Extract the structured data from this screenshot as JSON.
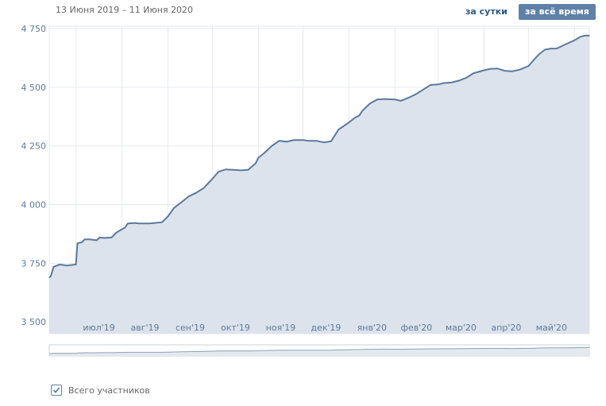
{
  "header": {
    "date_range": "13 Июня 2019 – 11 Июня 2020",
    "btn_day": "за сутки",
    "btn_all": "за всё время"
  },
  "legend": {
    "label": "Всего участников",
    "checked": true
  },
  "colors": {
    "line": "#5b7a9c",
    "fill": "#dde3ec",
    "grid": "#e7eaee",
    "accent": "#5e81a8"
  },
  "chart_data": {
    "type": "area",
    "title": "",
    "xlabel": "",
    "ylabel": "",
    "ylim": [
      3450,
      4760
    ],
    "y_ticks": [
      "4 750",
      "4 500",
      "4 250",
      "4 000",
      "3 750",
      "3 500"
    ],
    "y_tick_values": [
      4750,
      4500,
      4250,
      4000,
      3750,
      3500
    ],
    "x_tick_labels": [
      "июл'19",
      "авг'19",
      "сен'19",
      "окт'19",
      "ноя'19",
      "дек'19",
      "янв'20",
      "фев'20",
      "мар'20",
      "апр'20",
      "май'20"
    ],
    "x_range": [
      "2019-06-13",
      "2020-06-11"
    ],
    "grid": true,
    "series": [
      {
        "x": [
          "2019-06-13",
          "2019-06-14",
          "2019-06-16",
          "2019-06-20",
          "2019-06-25",
          "2019-07-01",
          "2019-07-02",
          "2019-07-05",
          "2019-07-07",
          "2019-07-10",
          "2019-07-15",
          "2019-07-17",
          "2019-07-20",
          "2019-07-25",
          "2019-07-28",
          "2019-08-01",
          "2019-08-03",
          "2019-08-05",
          "2019-08-10",
          "2019-08-12",
          "2019-08-20",
          "2019-08-28",
          "2019-09-01",
          "2019-09-05",
          "2019-09-10",
          "2019-09-15",
          "2019-09-20",
          "2019-09-25",
          "2019-10-01",
          "2019-10-05",
          "2019-10-10",
          "2019-10-15",
          "2019-10-20",
          "2019-10-25",
          "2019-10-30",
          "2019-11-01",
          "2019-11-05",
          "2019-11-10",
          "2019-11-15",
          "2019-11-20",
          "2019-11-25",
          "2019-12-01",
          "2019-12-05",
          "2019-12-10",
          "2019-12-15",
          "2019-12-20",
          "2019-12-25",
          "2020-01-01",
          "2020-01-05",
          "2020-01-08",
          "2020-01-10",
          "2020-01-15",
          "2020-01-20",
          "2020-01-25",
          "2020-02-01",
          "2020-02-05",
          "2020-02-10",
          "2020-02-15",
          "2020-02-20",
          "2020-02-25",
          "2020-03-01",
          "2020-03-05",
          "2020-03-10",
          "2020-03-15",
          "2020-03-20",
          "2020-03-25",
          "2020-04-01",
          "2020-04-05",
          "2020-04-10",
          "2020-04-15",
          "2020-04-20",
          "2020-04-25",
          "2020-05-01",
          "2020-05-05",
          "2020-05-08",
          "2020-05-12",
          "2020-05-16",
          "2020-05-20",
          "2020-05-25",
          "2020-06-01",
          "2020-06-05",
          "2020-06-08",
          "2020-06-11"
        ],
        "values": [
          3690,
          3695,
          3735,
          3745,
          3740,
          3745,
          3835,
          3840,
          3852,
          3852,
          3848,
          3860,
          3858,
          3860,
          3880,
          3895,
          3902,
          3920,
          3922,
          3920,
          3920,
          3925,
          3950,
          3985,
          4010,
          4035,
          4050,
          4070,
          4110,
          4140,
          4150,
          4148,
          4146,
          4148,
          4175,
          4200,
          4220,
          4250,
          4272,
          4268,
          4275,
          4275,
          4272,
          4272,
          4265,
          4270,
          4320,
          4350,
          4370,
          4380,
          4400,
          4430,
          4448,
          4450,
          4448,
          4442,
          4455,
          4470,
          4490,
          4510,
          4512,
          4518,
          4520,
          4528,
          4540,
          4560,
          4572,
          4578,
          4580,
          4570,
          4568,
          4575,
          4590,
          4620,
          4640,
          4660,
          4665,
          4665,
          4680,
          4700,
          4715,
          4720,
          4720
        ]
      }
    ]
  }
}
